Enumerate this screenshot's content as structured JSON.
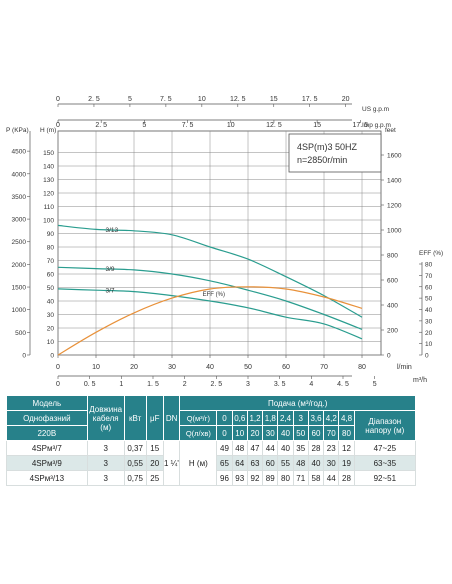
{
  "chart_data": {
    "type": "line",
    "title": "4SP(m)3  50HZ",
    "subtitle": "n=2850r/min",
    "x_main": {
      "unit": "l/min",
      "ticks": [
        0,
        10,
        20,
        30,
        40,
        50,
        60,
        70,
        80
      ],
      "range": [
        0,
        85
      ]
    },
    "x_m3h": {
      "unit": "m³/h",
      "tick_labels": [
        "0",
        "0. 5",
        "1",
        "1. 5",
        "2",
        "2. 5",
        "3",
        "3. 5",
        "4",
        "4. 5",
        "5"
      ]
    },
    "x_us": {
      "unit": "US g.p.m",
      "tick_labels": [
        "0",
        "2. 5",
        "5",
        "7. 5",
        "10",
        "12. 5",
        "15",
        "17. 5",
        "20"
      ]
    },
    "x_imp": {
      "unit": "Imp g.p.m",
      "tick_labels": [
        "0",
        "2. 5",
        "5",
        "7. 5",
        "10",
        "12. 5",
        "15",
        "17. 5"
      ]
    },
    "y_head": {
      "label": "H (m)",
      "ticks": [
        0,
        10,
        20,
        30,
        40,
        50,
        60,
        70,
        80,
        90,
        100,
        110,
        120,
        130,
        140,
        150
      ],
      "range": [
        0,
        160
      ]
    },
    "y_pressure": {
      "label": "P (KPa)",
      "ticks": [
        0,
        500,
        1000,
        1500,
        2000,
        2500,
        3000,
        3500,
        4000,
        4500
      ]
    },
    "y_feet": {
      "label": "feet",
      "ticks": [
        0,
        200,
        400,
        600,
        800,
        1000,
        1200,
        1400,
        1600
      ]
    },
    "y_eff": {
      "label": "EFF (%)",
      "ticks": [
        0,
        10,
        20,
        30,
        40,
        50,
        60,
        70,
        80
      ]
    },
    "series": [
      {
        "name": "3/13",
        "x": [
          0,
          10,
          20,
          30,
          40,
          50,
          60,
          70,
          80
        ],
        "y": [
          96,
          93,
          92,
          89,
          80,
          71,
          58,
          44,
          28
        ],
        "color": "#2a9d8f"
      },
      {
        "name": "3/9",
        "x": [
          0,
          10,
          20,
          30,
          40,
          50,
          60,
          70,
          80
        ],
        "y": [
          65,
          64,
          63,
          60,
          55,
          48,
          40,
          30,
          19
        ],
        "color": "#2a9d8f"
      },
      {
        "name": "3/7",
        "x": [
          0,
          10,
          20,
          30,
          40,
          50,
          60,
          70,
          80
        ],
        "y": [
          49,
          48,
          47,
          44,
          40,
          35,
          28,
          23,
          12
        ],
        "color": "#2a9d8f"
      },
      {
        "name": "EFF (%)",
        "x": [
          0,
          10,
          20,
          30,
          40,
          50,
          60,
          70,
          80
        ],
        "eff": [
          0,
          20,
          37,
          50,
          58,
          60,
          58,
          51,
          41
        ],
        "color": "#e8913a"
      }
    ]
  },
  "table": {
    "header": {
      "model": "Модель",
      "phase": "Однофазний",
      "voltage": "220В",
      "cable": [
        "Довжина",
        "кабеля",
        "(м)"
      ],
      "kw": "кВт",
      "uf": "μF",
      "dn": "DN",
      "flow_title": "Подача (м³/год.)",
      "q_m3h": "Q(м³/г)",
      "q_lmin": "Q(л/хв)",
      "q_m3h_values": [
        "0",
        "0,6",
        "1,2",
        "1,8",
        "2,4",
        "3",
        "3,6",
        "4,2",
        "4,8"
      ],
      "q_lmin_values": [
        "0",
        "10",
        "20",
        "30",
        "40",
        "50",
        "60",
        "70",
        "80"
      ],
      "range": [
        "Діапазон",
        "напору (м)"
      ]
    },
    "dn_value": "1 ¼\"",
    "h_label": "H (м)",
    "rows": [
      {
        "model": "4SPм³/7",
        "cable": "3",
        "kw": "0,37",
        "uf": "15",
        "h": [
          "49",
          "48",
          "47",
          "44",
          "40",
          "35",
          "28",
          "23",
          "12"
        ],
        "range": "47~25"
      },
      {
        "model": "4SPм³/9",
        "cable": "3",
        "kw": "0,55",
        "uf": "20",
        "h": [
          "65",
          "64",
          "63",
          "60",
          "55",
          "48",
          "40",
          "30",
          "19"
        ],
        "range": "63~35"
      },
      {
        "model": "4SPм³/13",
        "cable": "3",
        "kw": "0,75",
        "uf": "25",
        "h": [
          "96",
          "93",
          "92",
          "89",
          "80",
          "71",
          "58",
          "44",
          "28"
        ],
        "range": "92~51"
      }
    ]
  }
}
